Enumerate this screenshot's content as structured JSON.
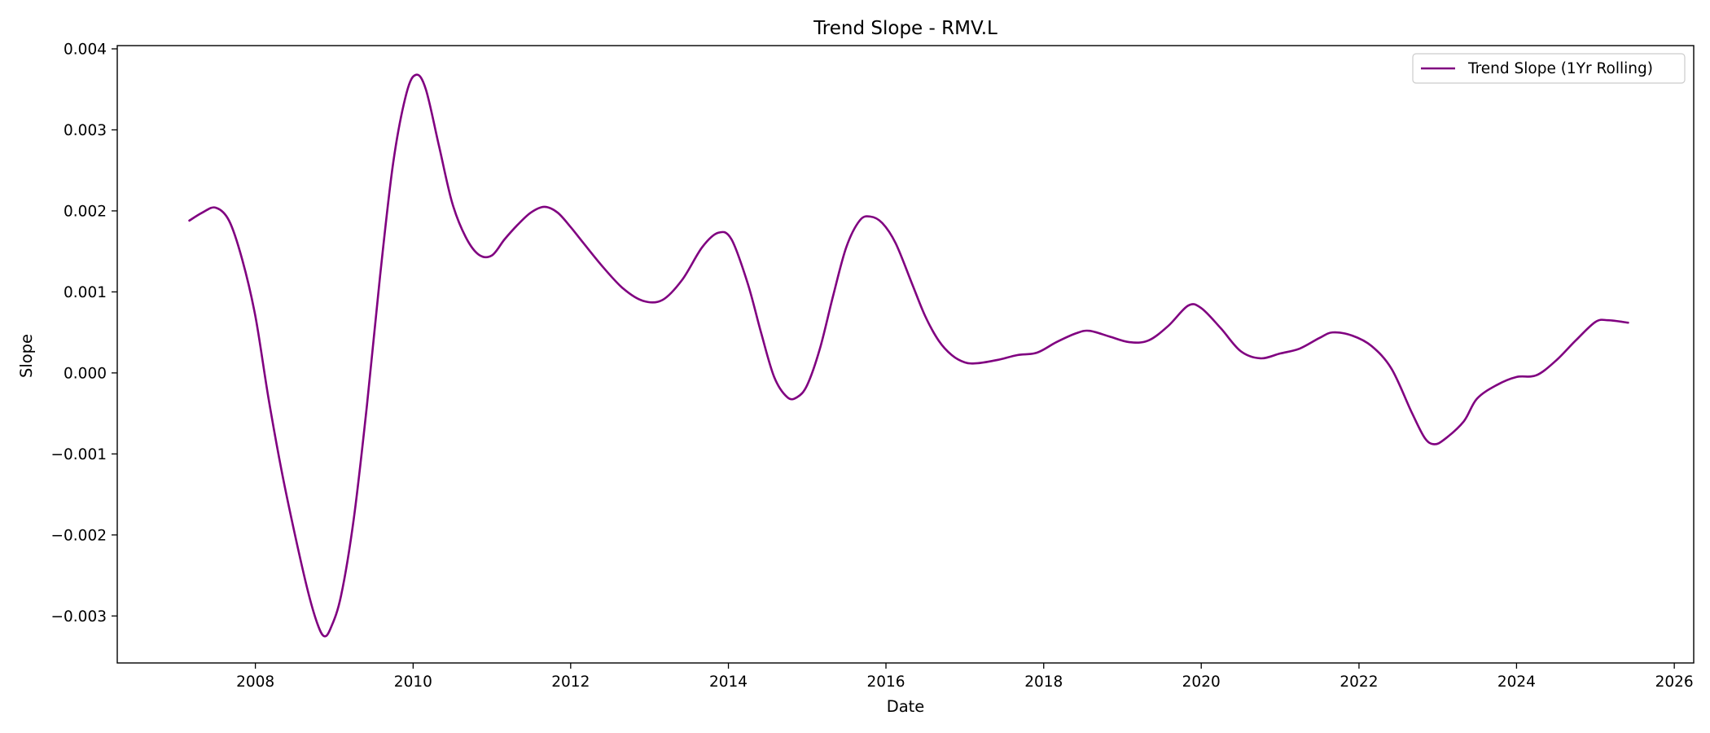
{
  "chart_data": {
    "type": "line",
    "title": "Trend Slope - RMV.L",
    "xlabel": "Date",
    "ylabel": "Slope",
    "xlim": [
      "2006-04-01",
      "2026-04-01"
    ],
    "ylim": [
      -0.00358,
      0.00404
    ],
    "x_ticks": [
      "2008",
      "2010",
      "2012",
      "2014",
      "2016",
      "2018",
      "2020",
      "2022",
      "2024",
      "2026"
    ],
    "y_ticks": [
      {
        "value": 0.004,
        "label": "0.004"
      },
      {
        "value": 0.003,
        "label": "0.003"
      },
      {
        "value": 0.002,
        "label": "0.002"
      },
      {
        "value": 0.001,
        "label": "0.001"
      },
      {
        "value": 0.0,
        "label": "0.000"
      },
      {
        "value": -0.001,
        "label": "−0.001"
      },
      {
        "value": -0.002,
        "label": "−0.002"
      },
      {
        "value": -0.003,
        "label": "−0.003"
      }
    ],
    "grid": false,
    "legend_position": "top-right",
    "series": [
      {
        "name": "Trend Slope (1Yr Rolling)",
        "color": "#800080",
        "points": [
          [
            "2007-03-01",
            0.00188
          ],
          [
            "2007-05-01",
            0.00198
          ],
          [
            "2007-07-01",
            0.00204
          ],
          [
            "2007-09-01",
            0.00188
          ],
          [
            "2007-11-01",
            0.0014
          ],
          [
            "2008-01-01",
            0.0007
          ],
          [
            "2008-03-01",
            -0.0003
          ],
          [
            "2008-05-01",
            -0.0012
          ],
          [
            "2008-07-01",
            -0.00198
          ],
          [
            "2008-09-01",
            -0.0027
          ],
          [
            "2008-10-15",
            -0.0031
          ],
          [
            "2008-11-15",
            -0.00325
          ],
          [
            "2008-12-15",
            -0.00315
          ],
          [
            "2009-02-01",
            -0.00275
          ],
          [
            "2009-04-01",
            -0.0018
          ],
          [
            "2009-06-01",
            -0.0004
          ],
          [
            "2009-08-01",
            0.0012
          ],
          [
            "2009-10-01",
            0.0026
          ],
          [
            "2009-12-01",
            0.00345
          ],
          [
            "2010-01-15",
            0.00368
          ],
          [
            "2010-03-01",
            0.0035
          ],
          [
            "2010-05-01",
            0.0028
          ],
          [
            "2010-07-01",
            0.0021
          ],
          [
            "2010-09-01",
            0.00168
          ],
          [
            "2010-11-01",
            0.00146
          ],
          [
            "2011-01-01",
            0.00145
          ],
          [
            "2011-03-01",
            0.00165
          ],
          [
            "2011-05-01",
            0.00183
          ],
          [
            "2011-07-01",
            0.00198
          ],
          [
            "2011-09-01",
            0.00205
          ],
          [
            "2011-11-01",
            0.00198
          ],
          [
            "2012-01-01",
            0.0018
          ],
          [
            "2012-03-01",
            0.0016
          ],
          [
            "2012-06-01",
            0.0013
          ],
          [
            "2012-09-01",
            0.00104
          ],
          [
            "2012-12-01",
            0.00089
          ],
          [
            "2013-03-01",
            0.0009
          ],
          [
            "2013-06-01",
            0.00115
          ],
          [
            "2013-09-01",
            0.00155
          ],
          [
            "2013-11-15",
            0.00173
          ],
          [
            "2014-01-15",
            0.00165
          ],
          [
            "2014-04-01",
            0.0011
          ],
          [
            "2014-06-01",
            0.0005
          ],
          [
            "2014-08-01",
            -5e-05
          ],
          [
            "2014-10-01",
            -0.0003
          ],
          [
            "2014-11-15",
            -0.0003
          ],
          [
            "2015-01-01",
            -0.00015
          ],
          [
            "2015-03-01",
            0.0003
          ],
          [
            "2015-05-01",
            0.00095
          ],
          [
            "2015-07-01",
            0.00155
          ],
          [
            "2015-09-01",
            0.00188
          ],
          [
            "2015-10-20",
            0.00193
          ],
          [
            "2015-12-15",
            0.00185
          ],
          [
            "2016-02-15",
            0.0016
          ],
          [
            "2016-05-01",
            0.0011
          ],
          [
            "2016-07-01",
            0.0007
          ],
          [
            "2016-09-01",
            0.0004
          ],
          [
            "2016-11-01",
            0.00022
          ],
          [
            "2017-01-01",
            0.00013
          ],
          [
            "2017-03-01",
            0.00012
          ],
          [
            "2017-06-01",
            0.00016
          ],
          [
            "2017-09-01",
            0.00022
          ],
          [
            "2017-12-01",
            0.00025
          ],
          [
            "2018-03-01",
            0.00038
          ],
          [
            "2018-06-01",
            0.00049
          ],
          [
            "2018-08-01",
            0.00052
          ],
          [
            "2018-11-01",
            0.00045
          ],
          [
            "2019-02-01",
            0.00038
          ],
          [
            "2019-05-01",
            0.0004
          ],
          [
            "2019-08-01",
            0.00058
          ],
          [
            "2019-11-01",
            0.00083
          ],
          [
            "2020-01-01",
            0.0008
          ],
          [
            "2020-04-01",
            0.00055
          ],
          [
            "2020-07-01",
            0.00027
          ],
          [
            "2020-10-01",
            0.00018
          ],
          [
            "2021-01-01",
            0.00024
          ],
          [
            "2021-04-01",
            0.0003
          ],
          [
            "2021-07-01",
            0.00043
          ],
          [
            "2021-09-01",
            0.0005
          ],
          [
            "2021-12-01",
            0.00046
          ],
          [
            "2022-03-01",
            0.00033
          ],
          [
            "2022-06-01",
            5e-05
          ],
          [
            "2022-09-01",
            -0.00048
          ],
          [
            "2022-11-01",
            -0.0008
          ],
          [
            "2022-12-15",
            -0.00088
          ],
          [
            "2023-02-01",
            -0.00082
          ],
          [
            "2023-05-01",
            -0.0006
          ],
          [
            "2023-07-01",
            -0.00032
          ],
          [
            "2023-10-01",
            -0.00015
          ],
          [
            "2024-01-01",
            -5e-05
          ],
          [
            "2024-04-01",
            -3e-05
          ],
          [
            "2024-07-01",
            0.00015
          ],
          [
            "2024-10-01",
            0.0004
          ],
          [
            "2025-01-01",
            0.00063
          ],
          [
            "2025-03-01",
            0.00065
          ],
          [
            "2025-06-01",
            0.00062
          ]
        ]
      }
    ]
  }
}
